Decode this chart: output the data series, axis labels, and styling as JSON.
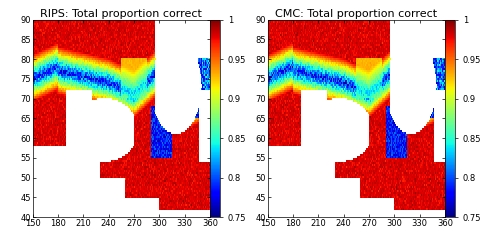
{
  "title_left": "RIPS: Total proportion correct",
  "title_right": "CMC: Total proportion correct",
  "cmap": "jet",
  "vmin": 0.75,
  "vmax": 1.0,
  "colorbar_ticks": [
    0.75,
    0.8,
    0.85,
    0.9,
    0.95,
    1.0
  ],
  "colorbar_ticklabels": [
    "0.75",
    "0.8",
    "0.85",
    "0.9",
    "0.95",
    "1"
  ],
  "xlim": [
    150,
    360
  ],
  "ylim": [
    40,
    90
  ],
  "xticks": [
    150,
    180,
    210,
    240,
    270,
    300,
    330,
    360
  ],
  "yticks": [
    40,
    45,
    50,
    55,
    60,
    65,
    70,
    75,
    80,
    85,
    90
  ],
  "fig_width": 5.0,
  "fig_height": 2.44,
  "background_color": "#ffffff",
  "title_fontsize": 8,
  "tick_fontsize": 6,
  "colorbar_fontsize": 6,
  "land_color": "#ffffff",
  "ocean_no_data_color": "#ffffff"
}
